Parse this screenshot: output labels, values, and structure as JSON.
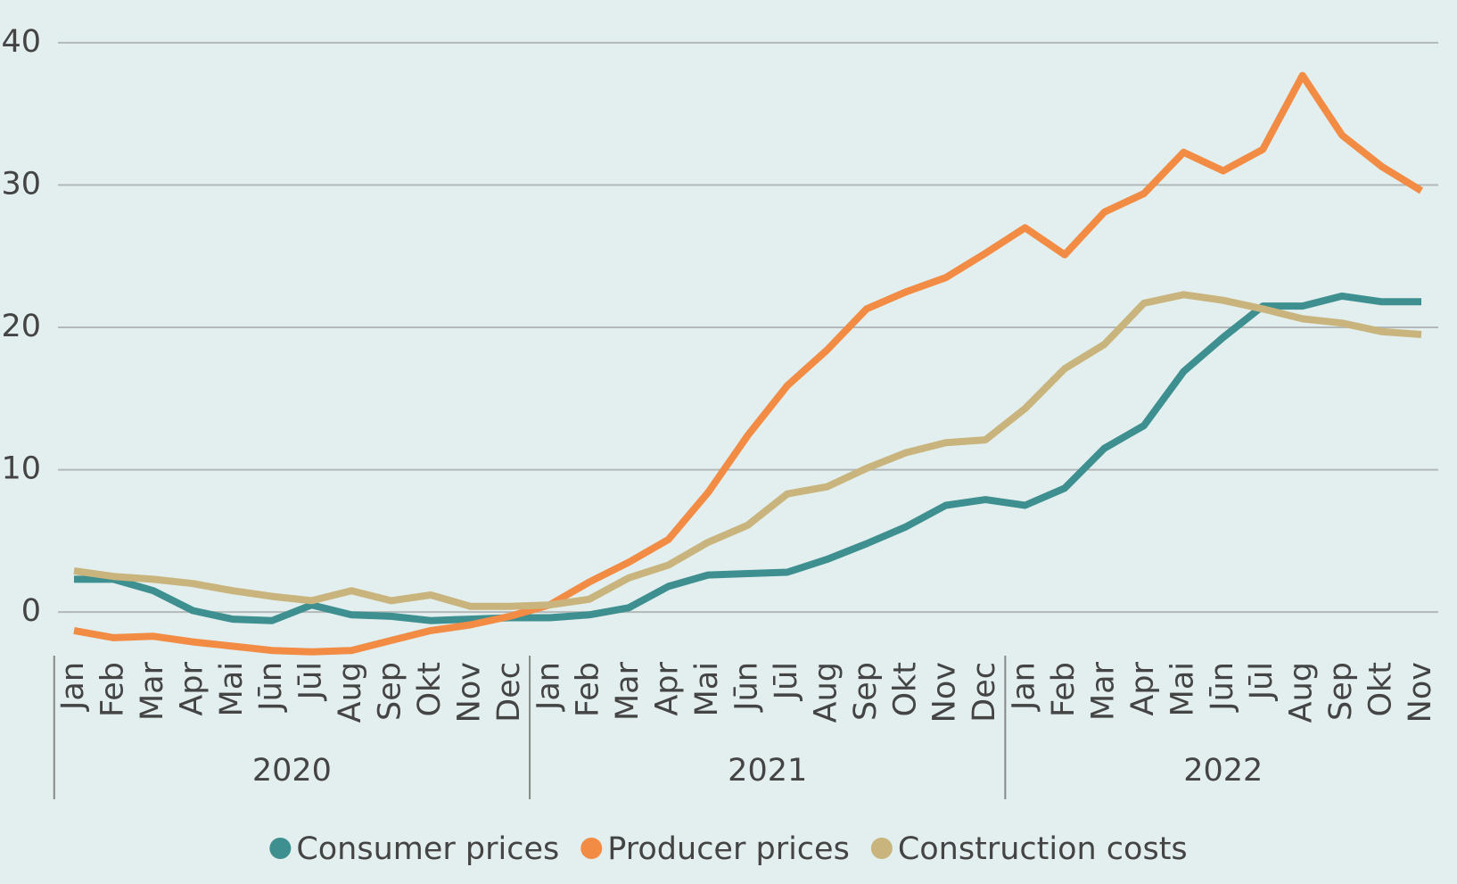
{
  "chart_data": {
    "type": "line",
    "categories": [
      "Jan",
      "Feb",
      "Mar",
      "Apr",
      "Mai",
      "Jūn",
      "Jūl",
      "Aug",
      "Sep",
      "Okt",
      "Nov",
      "Dec",
      "Jan",
      "Feb",
      "Mar",
      "Apr",
      "Mai",
      "Jūn",
      "Jūl",
      "Aug",
      "Sep",
      "Okt",
      "Nov",
      "Dec",
      "Jan",
      "Feb",
      "Mar",
      "Apr",
      "Mai",
      "Jūn",
      "Jūl",
      "Aug",
      "Sep",
      "Okt",
      "Nov"
    ],
    "groups": [
      "2020",
      "2021",
      "2022"
    ],
    "series": [
      {
        "name": "Consumer prices",
        "color": "#3e8f90",
        "values": [
          2.3,
          2.3,
          1.5,
          0.1,
          -0.5,
          -0.6,
          0.5,
          -0.2,
          -0.3,
          -0.6,
          -0.5,
          -0.4,
          -0.4,
          -0.2,
          0.3,
          1.8,
          2.6,
          2.7,
          2.8,
          3.7,
          4.8,
          6.0,
          7.5,
          7.9,
          7.5,
          8.7,
          11.5,
          13.1,
          16.9,
          19.3,
          21.5,
          21.5,
          22.2,
          21.8,
          21.8
        ]
      },
      {
        "name": "Producer prices",
        "color": "#f28c45",
        "values": [
          -1.3,
          -1.8,
          -1.7,
          -2.1,
          -2.4,
          -2.7,
          -2.8,
          -2.7,
          -2.0,
          -1.3,
          -0.9,
          -0.3,
          0.5,
          2.1,
          3.5,
          5.1,
          8.4,
          12.4,
          15.9,
          18.4,
          21.3,
          22.5,
          23.5,
          25.2,
          27.0,
          25.1,
          28.1,
          29.4,
          32.3,
          31.0,
          32.5,
          37.7,
          33.5,
          31.3,
          29.6
        ]
      },
      {
        "name": "Construction costs",
        "color": "#c8b47c",
        "values": [
          2.9,
          2.5,
          2.3,
          2.0,
          1.5,
          1.1,
          0.8,
          1.5,
          0.8,
          1.2,
          0.4,
          0.4,
          0.5,
          0.9,
          2.4,
          3.3,
          4.9,
          6.1,
          8.3,
          8.8,
          10.1,
          11.2,
          11.9,
          12.1,
          14.3,
          17.1,
          18.8,
          21.7,
          22.3,
          21.9,
          21.3,
          20.6,
          20.3,
          19.7,
          19.5
        ]
      }
    ],
    "ylim": [
      -3,
      43
    ],
    "yticks": [
      0,
      10,
      20,
      30,
      40
    ],
    "grid": true,
    "legend": "bottom"
  }
}
